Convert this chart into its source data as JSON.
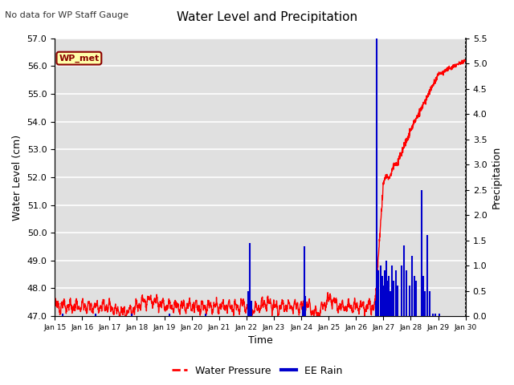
{
  "title": "Water Level and Precipitation",
  "subtitle": "No data for WP Staff Gauge",
  "ylabel_left": "Water Level (cm)",
  "ylabel_right": "Precipitation",
  "xlabel": "Time",
  "ylim_left": [
    47.0,
    57.0
  ],
  "ylim_right": [
    0.0,
    5.5
  ],
  "yticks_left": [
    47.0,
    48.0,
    49.0,
    50.0,
    51.0,
    52.0,
    53.0,
    54.0,
    55.0,
    56.0,
    57.0
  ],
  "yticks_right": [
    0.0,
    0.5,
    1.0,
    1.5,
    2.0,
    2.5,
    3.0,
    3.5,
    4.0,
    4.5,
    5.0,
    5.5
  ],
  "xtick_labels": [
    "Jan 15",
    "Jan 16",
    "Jan 17",
    "Jan 18",
    "Jan 19",
    "Jan 20",
    "Jan 21",
    "Jan 22",
    "Jan 23",
    "Jan 24",
    "Jan 25",
    "Jan 26",
    "Jan 27",
    "Jan 28",
    "Jan 29",
    "Jan 30"
  ],
  "water_color": "#FF0000",
  "rain_color": "#0000CC",
  "background_color": "#E0E0E0",
  "grid_color": "#FFFFFF",
  "wp_met_box_color": "#FFFFAA",
  "wp_met_text_color": "#8B0000",
  "wp_met_border_color": "#8B0000",
  "n_days": 15,
  "n_points": 2160,
  "title_fontsize": 11,
  "subtitle_fontsize": 8,
  "tick_fontsize": 8,
  "label_fontsize": 9
}
